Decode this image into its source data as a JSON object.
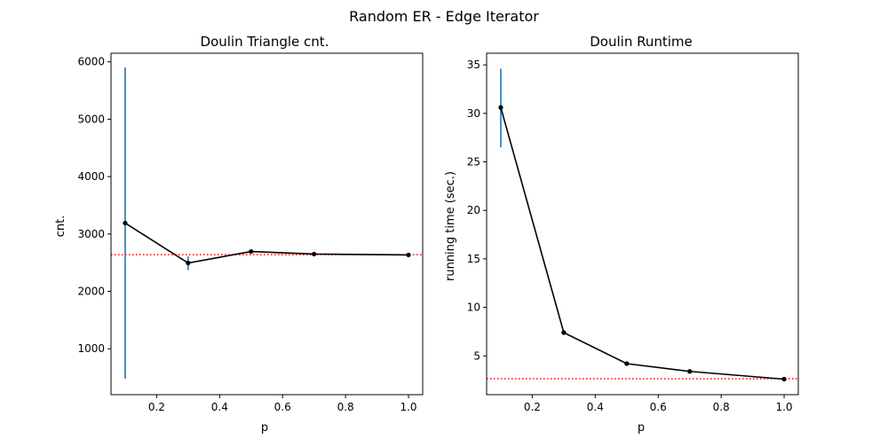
{
  "suptitle": "Random ER - Edge Iterator",
  "colors": {
    "line": "#000000",
    "errorbar": "#1f77b4",
    "reference": "#ff0000"
  },
  "chart_data": [
    {
      "type": "line",
      "title": "Doulin Triangle cnt.",
      "xlabel": "p",
      "ylabel": "cnt.",
      "x": [
        0.1,
        0.3,
        0.5,
        0.7,
        1.0
      ],
      "series": [
        {
          "values": [
            3190,
            2495,
            2695,
            2650,
            2635
          ],
          "err_low": [
            480,
            2370,
            2680,
            2640,
            2628
          ],
          "err_high": [
            5900,
            2610,
            2710,
            2660,
            2642
          ]
        }
      ],
      "reference_y": 2640,
      "xlim": [
        0.055,
        1.045
      ],
      "ylim": [
        200,
        6150
      ],
      "xticks": [
        0.2,
        0.4,
        0.6,
        0.8,
        1.0
      ],
      "xtick_labels": [
        "0.2",
        "0.4",
        "0.6",
        "0.8",
        "1.0"
      ],
      "yticks": [
        1000,
        2000,
        3000,
        4000,
        5000,
        6000
      ],
      "ytick_labels": [
        "1000",
        "2000",
        "3000",
        "4000",
        "5000",
        "6000"
      ]
    },
    {
      "type": "line",
      "title": "Doulin Runtime",
      "xlabel": "p",
      "ylabel": "running time (sec.)",
      "x": [
        0.1,
        0.3,
        0.5,
        0.7,
        1.0
      ],
      "series": [
        {
          "values": [
            30.6,
            7.4,
            4.2,
            3.4,
            2.6
          ],
          "err_low": [
            26.5,
            7.2,
            4.1,
            3.3,
            2.55
          ],
          "err_high": [
            34.6,
            7.6,
            4.3,
            3.5,
            2.65
          ]
        }
      ],
      "reference_y": 2.65,
      "xlim": [
        0.055,
        1.045
      ],
      "ylim": [
        1.0,
        36.2
      ],
      "xticks": [
        0.2,
        0.4,
        0.6,
        0.8,
        1.0
      ],
      "xtick_labels": [
        "0.2",
        "0.4",
        "0.6",
        "0.8",
        "1.0"
      ],
      "yticks": [
        5,
        10,
        15,
        20,
        25,
        30,
        35
      ],
      "ytick_labels": [
        "5",
        "10",
        "15",
        "20",
        "25",
        "30",
        "35"
      ]
    }
  ]
}
